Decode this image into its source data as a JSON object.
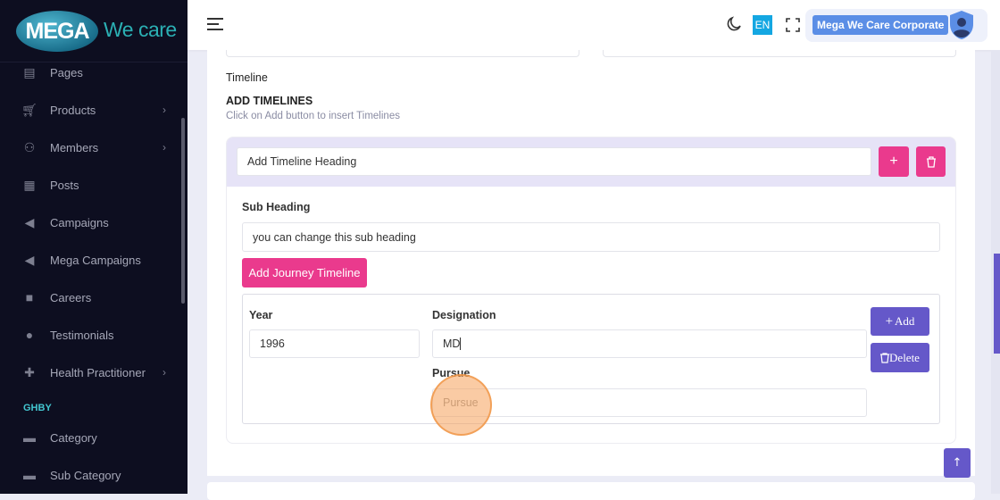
{
  "brand": {
    "logo_mark": "MEGA",
    "logo_text": "We care"
  },
  "sidebar": {
    "items": [
      {
        "label": "Pages",
        "icon": "layout-icon",
        "chevron": false
      },
      {
        "label": "Products",
        "icon": "cart-icon",
        "chevron": true
      },
      {
        "label": "Members",
        "icon": "users-icon",
        "chevron": true
      },
      {
        "label": "Posts",
        "icon": "newspaper-icon",
        "chevron": false
      },
      {
        "label": "Campaigns",
        "icon": "megaphone-icon",
        "chevron": false
      },
      {
        "label": "Mega Campaigns",
        "icon": "megaphone-icon",
        "chevron": false
      },
      {
        "label": "Careers",
        "icon": "briefcase-icon",
        "chevron": false
      },
      {
        "label": "Testimonials",
        "icon": "chat-icon",
        "chevron": false
      },
      {
        "label": "Health Practitioner",
        "icon": "medkit-icon",
        "chevron": true
      }
    ],
    "section": "GHBY",
    "section_items": [
      {
        "label": "Category",
        "icon": "list-icon"
      },
      {
        "label": "Sub Category",
        "icon": "list-icon"
      }
    ]
  },
  "header": {
    "lang": "EN",
    "user": "Mega We Care Corporate"
  },
  "main": {
    "section_label": "Timeline",
    "title": "ADD TIMELINES",
    "hint": "Click on Add button to insert Timelines",
    "heading_value": "Add Timeline Heading",
    "sub_heading_label": "Sub Heading",
    "sub_heading_value": "you can change this sub heading",
    "add_journey": "Add Journey Timeline",
    "year_label": "Year",
    "year_value": "1996",
    "designation_label": "Designation",
    "designation_value": "MD",
    "pursue_label": "Pursue",
    "pursue_placeholder": "Pursue",
    "add_label": "Add",
    "delete_label": "Delete",
    "plus": "+"
  },
  "colors": {
    "accent_pink": "#ea3a8d",
    "accent_indigo": "#6558c9",
    "sidebar": "#0d0e20"
  }
}
